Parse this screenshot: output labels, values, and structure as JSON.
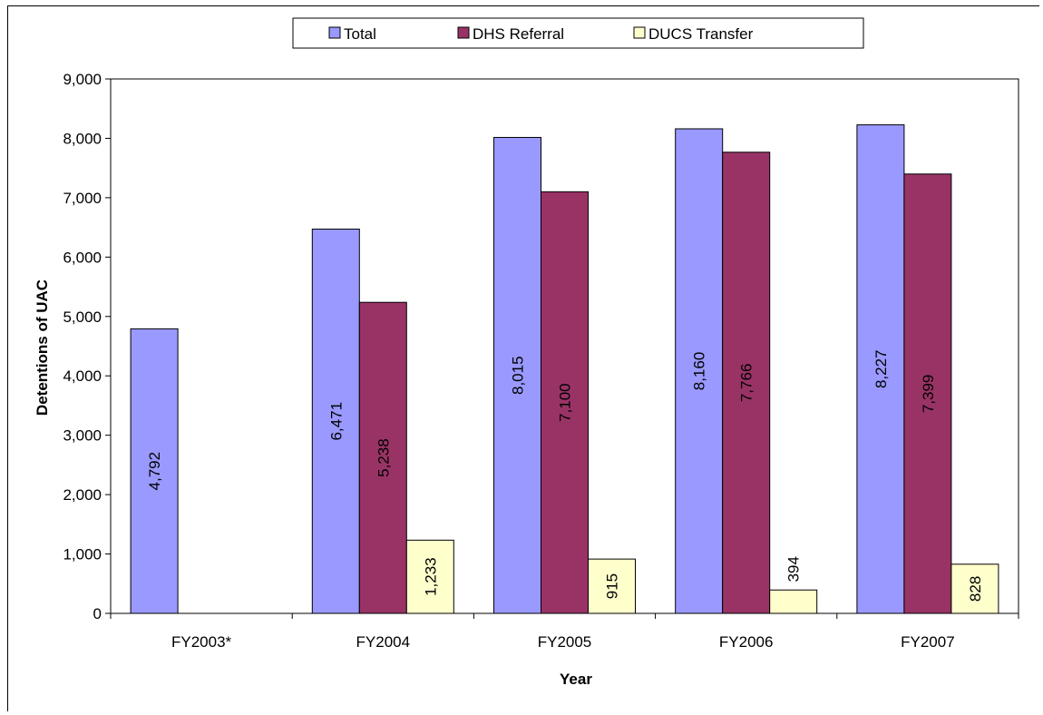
{
  "chart_data": {
    "type": "bar",
    "title": "",
    "xlabel": "Year",
    "ylabel": "Detentions of UAC",
    "categories": [
      "FY2003*",
      "FY2004",
      "FY2005",
      "FY2006",
      "FY2007"
    ],
    "series": [
      {
        "name": "Total",
        "color": "#9999ff",
        "values": [
          4792,
          6471,
          8015,
          8160,
          8227
        ],
        "labels": [
          "4,792",
          "6,471",
          "8,015",
          "8,160",
          "8,227"
        ]
      },
      {
        "name": "DHS Referral",
        "color": "#993366",
        "values": [
          null,
          5238,
          7100,
          7766,
          7399
        ],
        "labels": [
          null,
          "5,238",
          "7,100",
          "7,766",
          "7,399"
        ]
      },
      {
        "name": "DUCS Transfer",
        "color": "#ffffcc",
        "values": [
          null,
          1233,
          915,
          394,
          828
        ],
        "labels": [
          null,
          "1,233",
          "915",
          "394",
          "828"
        ]
      }
    ],
    "ylim": [
      0,
      9000
    ],
    "yticks": [
      0,
      1000,
      2000,
      3000,
      4000,
      5000,
      6000,
      7000,
      8000,
      9000
    ],
    "ytick_labels": [
      "0",
      "1,000",
      "2,000",
      "3,000",
      "4,000",
      "5,000",
      "6,000",
      "7,000",
      "8,000",
      "9,000"
    ],
    "grid": false,
    "legend_position": "top-center"
  }
}
